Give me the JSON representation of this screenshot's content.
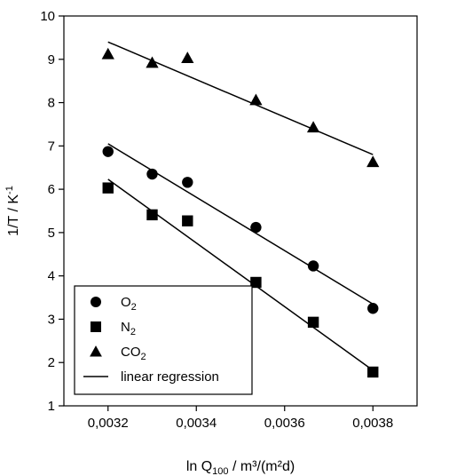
{
  "chart_data": {
    "type": "scatter",
    "xlabel": "ln Q100 / m³/(m²d)",
    "xlabel_parts": {
      "main": "ln Q",
      "sub": "100",
      "unit": " / m³/(m²d)"
    },
    "ylabel": "1/T / K⁻¹",
    "ylabel_parts": {
      "main": "1/T / K",
      "sup": "-1"
    },
    "xlim": [
      0.0031,
      0.0039
    ],
    "ylim": [
      1,
      10
    ],
    "x_ticks": [
      0.0032,
      0.0034,
      0.0036,
      0.0038
    ],
    "x_tick_labels": [
      "0,0032",
      "0,0034",
      "0,0036",
      "0,0038"
    ],
    "y_ticks": [
      1,
      2,
      3,
      4,
      5,
      6,
      7,
      8,
      9,
      10
    ],
    "y_tick_labels": [
      "1",
      "2",
      "3",
      "4",
      "5",
      "6",
      "7",
      "8",
      "9",
      "10"
    ],
    "grid": false,
    "legend_position": "bottom-left",
    "series": [
      {
        "name": "O2",
        "label_main": "O",
        "label_sub": "2",
        "marker": "circle",
        "x": [
          0.0032,
          0.0033,
          0.00338,
          0.003535,
          0.003665,
          0.0038
        ],
        "y": [
          6.87,
          6.35,
          6.16,
          5.12,
          4.23,
          3.25
        ],
        "fit": {
          "x": [
            0.0032,
            0.0038
          ],
          "y": [
            7.05,
            3.35
          ]
        }
      },
      {
        "name": "N2",
        "label_main": "N",
        "label_sub": "2",
        "marker": "square",
        "x": [
          0.0032,
          0.0033,
          0.00338,
          0.003535,
          0.003665,
          0.0038
        ],
        "y": [
          6.03,
          5.41,
          5.27,
          3.85,
          2.93,
          1.78
        ],
        "fit": {
          "x": [
            0.0032,
            0.0038
          ],
          "y": [
            6.23,
            1.82
          ]
        }
      },
      {
        "name": "CO2",
        "label_main": "CO",
        "label_sub": "2",
        "marker": "triangle",
        "x": [
          0.0032,
          0.0033,
          0.00338,
          0.003535,
          0.003665,
          0.0038
        ],
        "y": [
          9.12,
          8.92,
          9.03,
          8.06,
          7.43,
          6.63
        ],
        "fit": {
          "x": [
            0.0032,
            0.0038
          ],
          "y": [
            9.4,
            6.8
          ]
        }
      }
    ],
    "legend_entries": [
      {
        "main": "O",
        "sub": "2",
        "marker": "circle"
      },
      {
        "main": "N",
        "sub": "2",
        "marker": "square"
      },
      {
        "main": "CO",
        "sub": "2",
        "marker": "triangle"
      },
      {
        "main": "linear regression",
        "sub": "",
        "marker": "line"
      }
    ]
  }
}
